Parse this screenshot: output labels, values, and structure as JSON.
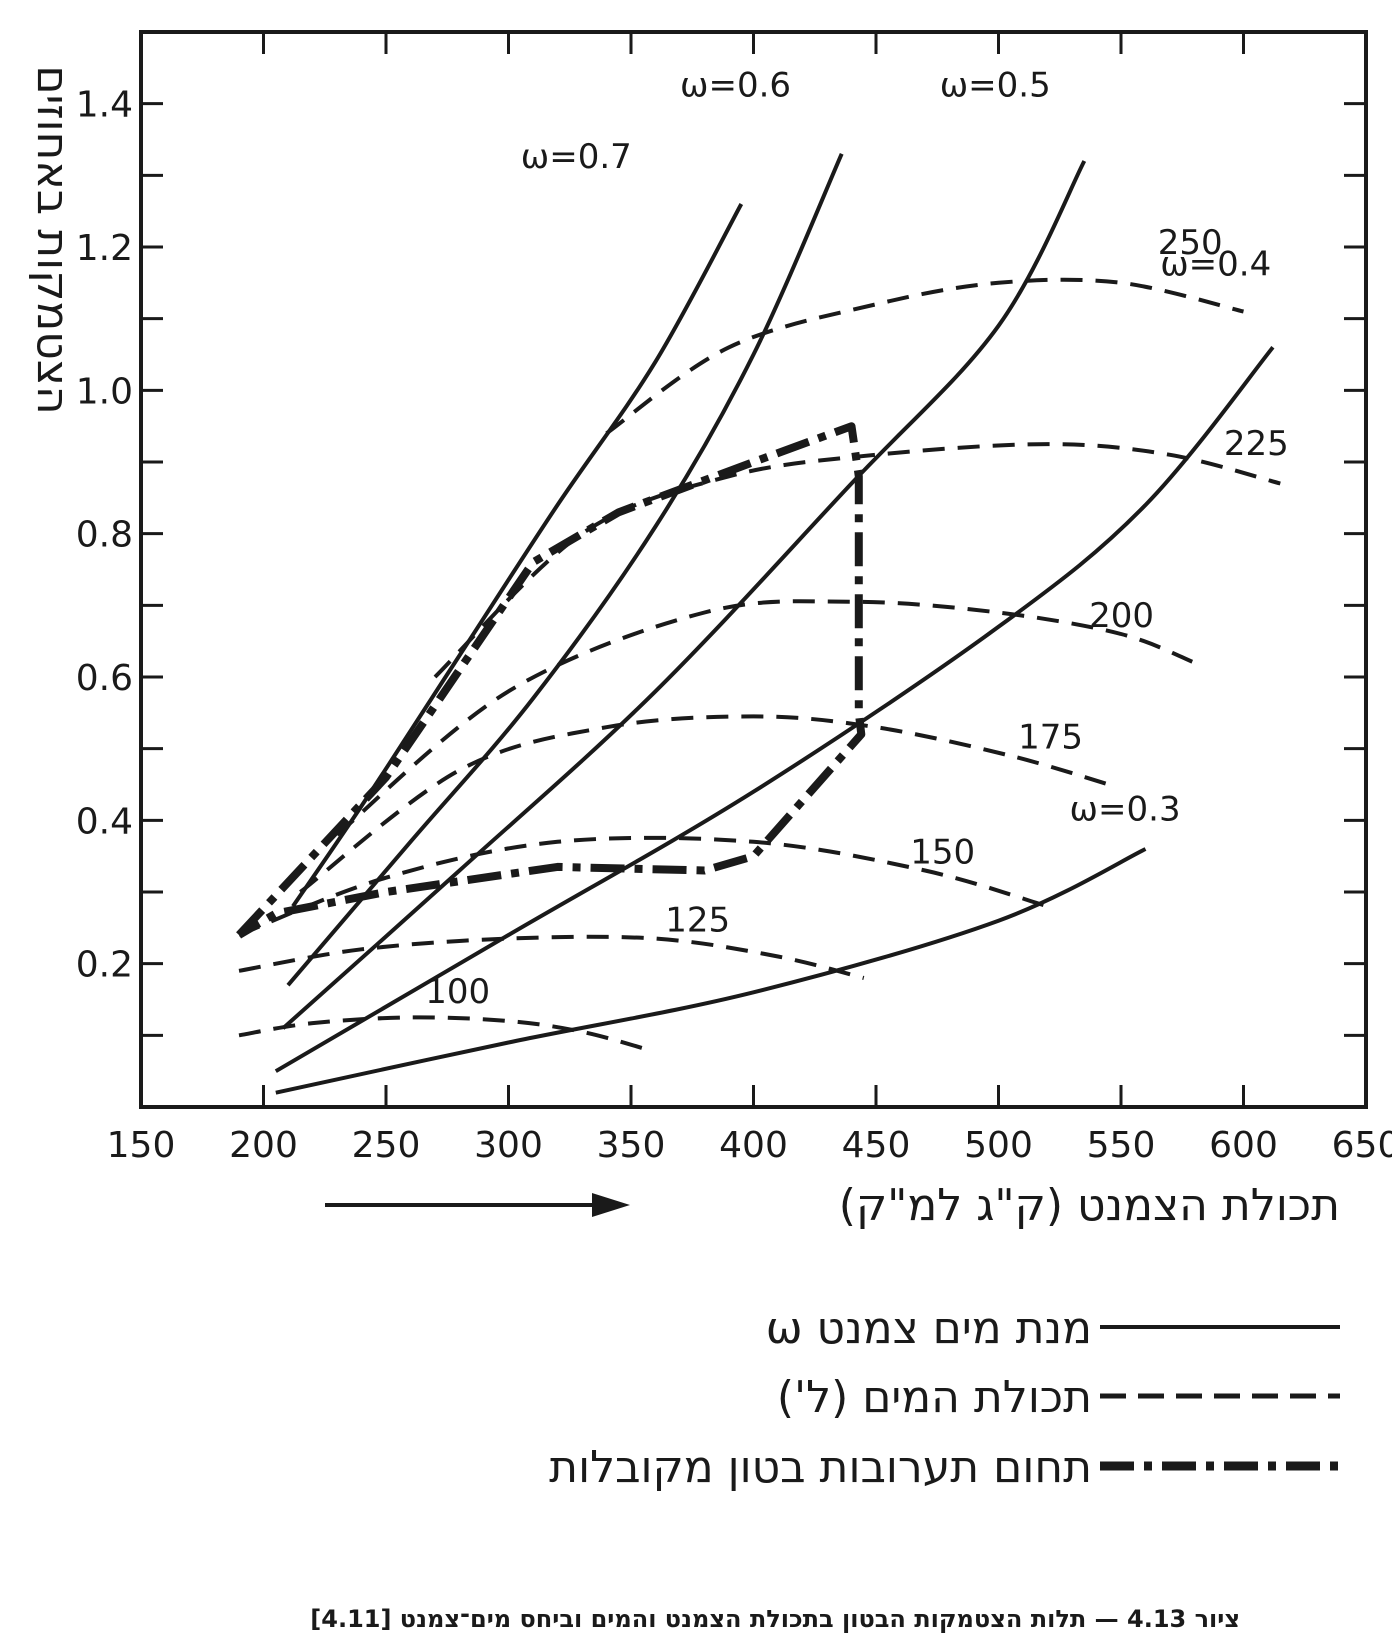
{
  "chart_data": {
    "type": "line",
    "xlabel": "תכולת הצמנט (ק\"ג למ\"ק)",
    "ylabel": "הצטמקות באחוזים",
    "xlim": [
      150,
      650
    ],
    "ylim": [
      0,
      1.5
    ],
    "x_ticks": [
      "150",
      "200",
      "250",
      "300",
      "350",
      "400",
      "450",
      "500",
      "550",
      "600",
      "650"
    ],
    "y_ticks": [
      {
        "value": 0.2,
        "label": "0.2"
      },
      {
        "value": 0.4,
        "label": "0.4"
      },
      {
        "value": 0.6,
        "label": "0.6"
      },
      {
        "value": 0.8,
        "label": "0.8"
      },
      {
        "value": 1.0,
        "label": "1.0"
      },
      {
        "value": 1.2,
        "label": "1.2"
      },
      {
        "value": 1.4,
        "label": "1.4"
      }
    ],
    "grid": false,
    "caption": "ציור 4.13 — תלות הצטמקות הבטון בתכולת הצמנט והמים וביחס מים־צמנט [4.11]",
    "legend": [
      {
        "label": "מנת מים צמנט ω",
        "style": "solid"
      },
      {
        "label": "תכולת המים (ל')",
        "style": "dashed"
      },
      {
        "label": "תחום תערובות בטון מקובלות",
        "style": "dash-dot"
      }
    ],
    "series_wc": [
      {
        "name": "ω=0.7",
        "points": [
          [
            212,
            0.28
          ],
          [
            240,
            0.42
          ],
          [
            280,
            0.63
          ],
          [
            320,
            0.84
          ],
          [
            360,
            1.04
          ],
          [
            395,
            1.26
          ]
        ],
        "label_at": [
          305,
          1.31
        ]
      },
      {
        "name": "ω=0.6",
        "points": [
          [
            210,
            0.17
          ],
          [
            260,
            0.37
          ],
          [
            310,
            0.57
          ],
          [
            360,
            0.81
          ],
          [
            400,
            1.05
          ],
          [
            436,
            1.33
          ]
        ],
        "label_at": [
          370,
          1.41
        ]
      },
      {
        "name": "ω=0.5",
        "points": [
          [
            208,
            0.11
          ],
          [
            280,
            0.33
          ],
          [
            360,
            0.58
          ],
          [
            440,
            0.87
          ],
          [
            500,
            1.09
          ],
          [
            535,
            1.32
          ]
        ],
        "label_at": [
          476,
          1.41
        ]
      },
      {
        "name": "ω=0.4",
        "points": [
          [
            205,
            0.05
          ],
          [
            300,
            0.24
          ],
          [
            400,
            0.44
          ],
          [
            500,
            0.67
          ],
          [
            560,
            0.84
          ],
          [
            612,
            1.06
          ]
        ],
        "label_at": [
          566,
          1.16
        ]
      },
      {
        "name": "ω=0.3",
        "points": [
          [
            205,
            0.02
          ],
          [
            300,
            0.09
          ],
          [
            400,
            0.16
          ],
          [
            500,
            0.26
          ],
          [
            560,
            0.36
          ]
        ],
        "label_at": [
          529,
          0.4
        ]
      }
    ],
    "series_water": [
      {
        "name": "100",
        "points": [
          [
            190,
            0.1
          ],
          [
            220,
            0.117
          ],
          [
            260,
            0.125
          ],
          [
            300,
            0.12
          ],
          [
            330,
            0.105
          ],
          [
            357,
            0.08
          ]
        ],
        "label_at": [
          266,
          0.145
        ]
      },
      {
        "name": "125",
        "points": [
          [
            190,
            0.19
          ],
          [
            240,
            0.22
          ],
          [
            300,
            0.235
          ],
          [
            360,
            0.235
          ],
          [
            410,
            0.21
          ],
          [
            445,
            0.18
          ]
        ],
        "label_at": [
          364,
          0.245
        ]
      },
      {
        "name": "150",
        "points": [
          [
            190,
            0.24
          ],
          [
            250,
            0.32
          ],
          [
            320,
            0.37
          ],
          [
            400,
            0.37
          ],
          [
            470,
            0.33
          ],
          [
            520,
            0.28
          ]
        ],
        "label_at": [
          464,
          0.34
        ]
      },
      {
        "name": "175",
        "points": [
          [
            215,
            0.3
          ],
          [
            280,
            0.47
          ],
          [
            340,
            0.53
          ],
          [
            400,
            0.545
          ],
          [
            450,
            0.53
          ],
          [
            505,
            0.49
          ],
          [
            545,
            0.45
          ]
        ],
        "label_at": [
          508,
          0.5
        ]
      },
      {
        "name": "200",
        "points": [
          [
            230,
            0.38
          ],
          [
            300,
            0.58
          ],
          [
            380,
            0.69
          ],
          [
            440,
            0.705
          ],
          [
            500,
            0.69
          ],
          [
            550,
            0.66
          ],
          [
            580,
            0.62
          ]
        ],
        "label_at": [
          537,
          0.67
        ]
      },
      {
        "name": "225",
        "points": [
          [
            270,
            0.6
          ],
          [
            330,
            0.8
          ],
          [
            390,
            0.88
          ],
          [
            450,
            0.91
          ],
          [
            520,
            0.925
          ],
          [
            570,
            0.91
          ],
          [
            615,
            0.87
          ]
        ],
        "label_at": [
          592,
          0.91
        ]
      },
      {
        "name": "250",
        "points": [
          [
            340,
            0.94
          ],
          [
            390,
            1.06
          ],
          [
            450,
            1.12
          ],
          [
            500,
            1.15
          ],
          [
            550,
            1.15
          ],
          [
            600,
            1.11
          ]
        ],
        "label_at": [
          565,
          1.19
        ]
      }
    ],
    "region_dashdot": [
      [
        190,
        0.24
      ],
      [
        250,
        0.46
      ],
      [
        310,
        0.76
      ],
      [
        345,
        0.83
      ],
      [
        400,
        0.9
      ],
      [
        440,
        0.95
      ],
      [
        443,
        0.88
      ],
      [
        443,
        0.55
      ],
      [
        444,
        0.52
      ],
      [
        400,
        0.35
      ],
      [
        380,
        0.33
      ],
      [
        320,
        0.335
      ],
      [
        250,
        0.3
      ],
      [
        205,
        0.27
      ],
      [
        190,
        0.24
      ]
    ]
  }
}
